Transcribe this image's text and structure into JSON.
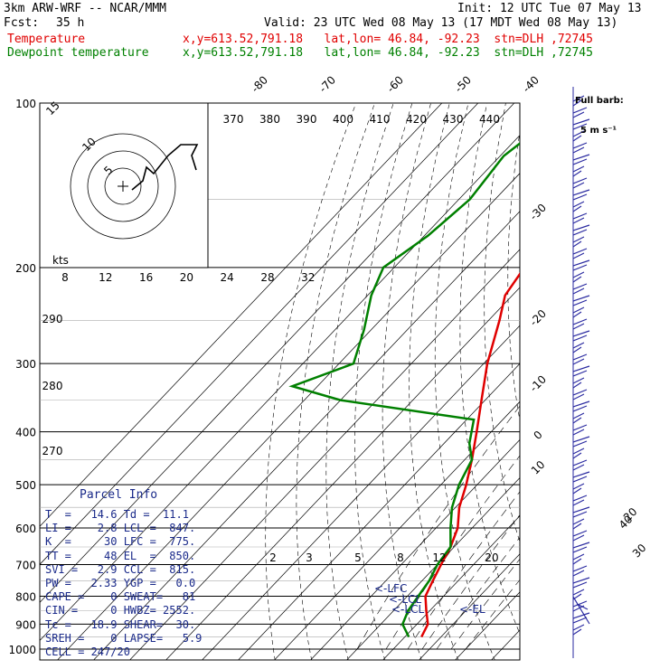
{
  "header": {
    "model": "3km ARW-WRF -- NCAR/MMM",
    "init": "Init: 12 UTC Tue 07 May 13",
    "fcst_label": "Fcst:",
    "fcst_value": "35 h",
    "valid": "Valid: 23 UTC Wed 08 May 13 (17 MDT Wed 08 May 13)",
    "temp_label": "Temperature",
    "temp_info": "x,y=613.52,791.18   lat,lon= 46.84, -92.23  stn=DLH ,72745",
    "dew_label": "Dewpoint temperature",
    "dew_info": "x,y=613.52,791.18   lat,lon= 46.84, -92.23  stn=DLH ,72745"
  },
  "barb_legend": {
    "line1": "Full barb:",
    "line2": "5 m s⁻¹"
  },
  "parcel": {
    "title": "Parcel Info",
    "rows": [
      "T  =   14.6 Td =  11.1",
      "LI =    2.8 LCL =  847.",
      "K  =     30 LFC =  775.",
      "TT =     48 EL  =  850.",
      "SVI =   2.9 CCL =  815.",
      "PW =   2.33 YGP =   0.0",
      "CAPE =    0 SWEAT=   81",
      "CIN =     0 HWBZ= 2552.",
      "Tc =   18.9 SHEAR=  30.",
      "SREH =    0 LAPSE=   5.9",
      "CELL = 247/20"
    ]
  },
  "hodograph_labels": {
    "kts": "kts",
    "r1": "5",
    "r2": "10",
    "r3": "15"
  },
  "parcel_markers": {
    "lfc": "<-LFC",
    "lcl": "<-LCL",
    "lcl2": "<-LCL",
    "el": "<-EL"
  },
  "colors": {
    "temperature": "#e00000",
    "dewpoint": "#008000",
    "barbs": "#2a2aa0",
    "parcel": "#1a2a8a"
  },
  "chart_data": {
    "type": "line",
    "chart_kind": "skew-T log-p",
    "pressure_ticks": [
      100,
      200,
      300,
      400,
      500,
      600,
      700,
      800,
      900,
      1000
    ],
    "isotherm_labels": [
      "-80",
      "-70",
      "-60",
      "-50",
      "-40",
      "-30",
      "-20",
      "-10",
      "0",
      "10",
      "20",
      "30",
      "40"
    ],
    "theta_labels_top": [
      "370",
      "380",
      "390",
      "400",
      "410",
      "420",
      "430",
      "440"
    ],
    "theta_labels_left": [
      "290",
      "280",
      "270"
    ],
    "mixing_ratio_labels_200": [
      "8",
      "12",
      "16",
      "20",
      "24",
      "28",
      "32"
    ],
    "mixing_ratio_labels_700": [
      "2",
      "3",
      "5",
      "8",
      "12",
      "20"
    ],
    "series": [
      {
        "name": "Temperature",
        "points": [
          [
            100,
            -56
          ],
          [
            125,
            -57
          ],
          [
            150,
            -55
          ],
          [
            175,
            -52
          ],
          [
            200,
            -54
          ],
          [
            225,
            -52
          ],
          [
            250,
            -47
          ],
          [
            300,
            -39
          ],
          [
            350,
            -31
          ],
          [
            400,
            -24
          ],
          [
            450,
            -18
          ],
          [
            500,
            -13
          ],
          [
            550,
            -9
          ],
          [
            600,
            -4
          ],
          [
            650,
            -1
          ],
          [
            700,
            1
          ],
          [
            750,
            3
          ],
          [
            800,
            5
          ],
          [
            850,
            9
          ],
          [
            900,
            13
          ],
          [
            950,
            14.6
          ]
        ]
      },
      {
        "name": "Dewpoint temperature",
        "points": [
          [
            100,
            -84
          ],
          [
            125,
            -89
          ],
          [
            150,
            -87
          ],
          [
            175,
            -89
          ],
          [
            200,
            -93
          ],
          [
            225,
            -89
          ],
          [
            260,
            -82
          ],
          [
            300,
            -76
          ],
          [
            330,
            -87
          ],
          [
            350,
            -70
          ],
          [
            380,
            -28
          ],
          [
            420,
            -23
          ],
          [
            450,
            -18
          ],
          [
            500,
            -15
          ],
          [
            550,
            -11
          ],
          [
            600,
            -6
          ],
          [
            650,
            -1
          ],
          [
            700,
            0
          ],
          [
            750,
            2
          ],
          [
            800,
            3
          ],
          [
            850,
            4
          ],
          [
            900,
            6
          ],
          [
            950,
            11.1
          ]
        ]
      }
    ],
    "hodograph": {
      "rings_kt": [
        5,
        10,
        15
      ]
    }
  }
}
